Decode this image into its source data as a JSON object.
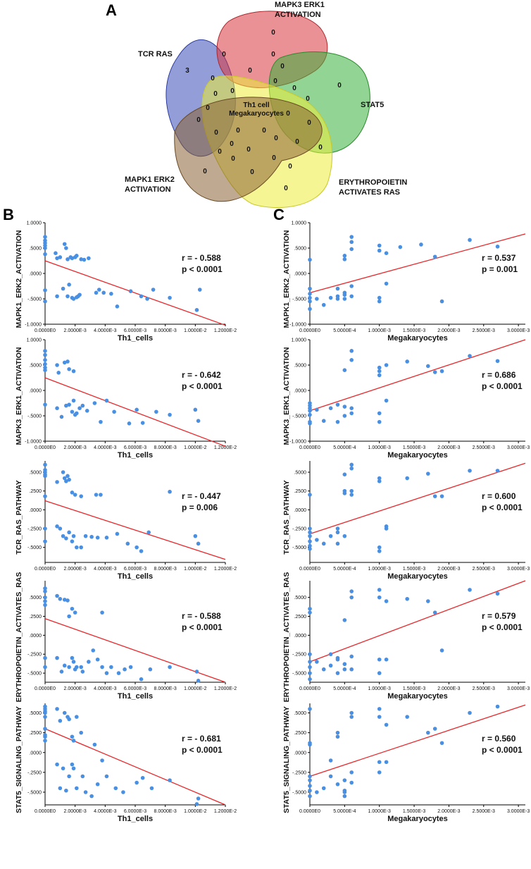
{
  "panels": {
    "A": "A",
    "B": "B",
    "C": "C"
  },
  "venn": {
    "center_label_line1": "Th1 cell",
    "center_label_line2": "Megakaryocytes",
    "sets": [
      {
        "name": "tcr-ras",
        "label_lines": [
          "TCR RAS"
        ],
        "color": "#3b4fb8"
      },
      {
        "name": "mapk3",
        "label_lines": [
          "MAPK3 ERK1",
          "ACTIVATION"
        ],
        "color": "#d8373e"
      },
      {
        "name": "stat5",
        "label_lines": [
          "STAT5"
        ],
        "color": "#39b13a"
      },
      {
        "name": "epo",
        "label_lines": [
          "ERYTHROPOIETIN",
          "ACTIVATES RAS"
        ],
        "color": "#eded3c"
      },
      {
        "name": "mapk1",
        "label_lines": [
          "MAPK1 ERK2",
          "ACTIVATION"
        ],
        "color": "#8a6234"
      }
    ],
    "counts": [
      "3",
      "0",
      "0",
      "0",
      "0",
      "0",
      "0",
      "0",
      "0",
      "0",
      "0",
      "0",
      "0",
      "0",
      "0",
      "0",
      "0",
      "0",
      "0",
      "0",
      "0",
      "0",
      "0",
      "0",
      "0",
      "0",
      "0",
      "0",
      "0",
      "0",
      "0",
      "0"
    ]
  },
  "chart_data": [
    {
      "id": "B1",
      "type": "scatter",
      "ylabel": "MAPK1_ERK2_ACTIVATION",
      "xlabel": "Th1_cells",
      "xlim": [
        0,
        0.012
      ],
      "ylim": [
        -1,
        1
      ],
      "xticks": [
        "0.0000E0",
        "2.0000E-3",
        "4.0000E-3",
        "6.0000E-3",
        "8.0000E-3",
        "1.0000E-2",
        "1.2000E-2"
      ],
      "yticks": [
        "1.0000",
        ".5000",
        ".0000",
        "-.5000",
        "-1.0000"
      ],
      "stat_r": "r = - 0.588",
      "stat_p": "p < 0.0001",
      "fit": [
        0.25,
        -1.02
      ],
      "x": [
        0,
        0,
        0,
        0,
        0,
        0,
        0.0007,
        0.0008,
        0.001,
        0.0013,
        0.0014,
        0.0015,
        0.0017,
        0.0018,
        0.002,
        0.0021,
        0.0024,
        0.0026,
        0.0029,
        0,
        0,
        0.0008,
        0.0012,
        0.0015,
        0.0016,
        0.0018,
        0.0019,
        0.0021,
        0.0022,
        0.0023,
        0.0034,
        0.0036,
        0.0039,
        0.0044,
        0.0048,
        0.0057,
        0.0064,
        0.0068,
        0.0072,
        0.0083,
        0.0101,
        0.0103
      ],
      "y": [
        0.72,
        0.65,
        0.6,
        0.55,
        0.5,
        0.38,
        0.4,
        0.3,
        0.32,
        0.58,
        0.5,
        0.28,
        0.32,
        0.3,
        0.32,
        0.35,
        0.28,
        0.27,
        0.3,
        -0.33,
        -0.55,
        -0.45,
        -0.3,
        -0.45,
        -0.22,
        -0.48,
        -0.5,
        -0.47,
        -0.45,
        -0.42,
        -0.38,
        -0.32,
        -0.38,
        -0.4,
        -0.65,
        -0.35,
        -0.45,
        -0.5,
        -0.32,
        -0.48,
        -0.72,
        -0.32
      ]
    },
    {
      "id": "B2",
      "type": "scatter",
      "ylabel": "MAPK3_ERK1_ACTIVATION",
      "xlabel": "Th1_cells",
      "xlim": [
        0,
        0.012
      ],
      "ylim": [
        -1,
        1
      ],
      "xticks": [
        "0.0000E0",
        "2.0000E-3",
        "4.0000E-3",
        "6.0000E-3",
        "8.0000E-3",
        "1.0000E-2",
        "1.2000E-2"
      ],
      "yticks": [
        "1.0000",
        ".5000",
        ".0000",
        "-.5000",
        "-1.0000"
      ],
      "stat_r": "r = - 0.642",
      "stat_p": "p < 0.0001",
      "fit": [
        0.25,
        -1.1
      ],
      "x": [
        0,
        0,
        0,
        0,
        0,
        0,
        0.0008,
        0.0009,
        0.0013,
        0.0015,
        0.0016,
        0.0019,
        0,
        0.0008,
        0.0011,
        0.0014,
        0.0016,
        0.0018,
        0.0019,
        0.002,
        0.0021,
        0.0023,
        0.0025,
        0.0028,
        0.0033,
        0.0037,
        0.0041,
        0.0046,
        0.0056,
        0.0061,
        0.0065,
        0.0074,
        0.0083,
        0.01,
        0.0102
      ],
      "y": [
        0.78,
        0.7,
        0.6,
        0.52,
        0.45,
        0.4,
        0.5,
        0.35,
        0.55,
        0.57,
        0.42,
        0.38,
        -0.28,
        -0.35,
        -0.52,
        -0.3,
        -0.28,
        -0.42,
        -0.2,
        -0.48,
        -0.45,
        -0.35,
        -0.3,
        -0.4,
        -0.25,
        -0.62,
        -0.2,
        -0.42,
        -0.65,
        -0.38,
        -0.64,
        -0.42,
        -0.48,
        -0.38,
        -0.6
      ]
    },
    {
      "id": "B3",
      "type": "scatter",
      "ylabel": "TCR_RAS_PATHWAY",
      "xlabel": "Th1_cells",
      "xlim": [
        0,
        0.012
      ],
      "ylim": [
        -0.7,
        0.65
      ],
      "xticks": [
        "0.0000E0",
        "2.0000E-3",
        "4.0000E-3",
        "6.0000E-3",
        "8.0000E-3",
        "1.0000E-2",
        "1.2000E-2"
      ],
      "yticks": [
        ".5000",
        ".2500",
        ".0000",
        "-.2500",
        "-.5000"
      ],
      "stat_r": "r = - 0.447",
      "stat_p": "p = 0.006",
      "fit": [
        0.12,
        -0.66
      ],
      "x": [
        0,
        0,
        0,
        0,
        0,
        0,
        0.0008,
        0.0012,
        0.0013,
        0.0014,
        0.0015,
        0.0016,
        0.0018,
        0.002,
        0.0024,
        0.0034,
        0.0037,
        0.0083,
        0,
        0,
        0.0008,
        0.001,
        0.0012,
        0.0014,
        0.0016,
        0.0018,
        0.0019,
        0.0021,
        0.0024,
        0.0027,
        0.0031,
        0.0035,
        0.0041,
        0.0048,
        0.0055,
        0.0061,
        0.0064,
        0.0069,
        0.01,
        0.0102
      ],
      "y": [
        0.6,
        0.53,
        0.5,
        0.47,
        0.45,
        0.18,
        0.37,
        0.5,
        0.42,
        0.38,
        0.45,
        0.4,
        0.23,
        0.2,
        0.18,
        0.2,
        0.2,
        0.24,
        -0.25,
        -0.42,
        -0.22,
        -0.25,
        -0.35,
        -0.38,
        -0.3,
        -0.42,
        -0.35,
        -0.5,
        -0.5,
        -0.35,
        -0.36,
        -0.37,
        -0.37,
        -0.32,
        -0.45,
        -0.5,
        -0.55,
        -0.3,
        -0.35,
        -0.45
      ]
    },
    {
      "id": "B4",
      "type": "scatter",
      "ylabel": "ERYTHROPOIETIN_ACTIVATES_RAS",
      "xlabel": "Th1_cells",
      "xlim": [
        0,
        0.012
      ],
      "ylim": [
        -0.62,
        0.72
      ],
      "xticks": [
        "0.0000E0",
        "2.0000E-3",
        "4.0000E-3",
        "6.0000E-3",
        "8.0000E-3",
        "1.0000E-2",
        "1.2000E-2"
      ],
      "yticks": [
        ".5000",
        ".2500",
        ".0000",
        "-.2500",
        "-.5000"
      ],
      "stat_r": "r = - 0.588",
      "stat_p": "p < 0.0001",
      "fit": [
        0.22,
        -0.62
      ],
      "x": [
        0,
        0,
        0,
        0,
        0,
        0.0008,
        0.001,
        0.0013,
        0.0015,
        0.0016,
        0.0018,
        0.002,
        0.0038,
        0,
        0,
        0.0008,
        0.0011,
        0.0013,
        0.0016,
        0.0018,
        0.0019,
        0.002,
        0.0021,
        0.0024,
        0.0025,
        0.0029,
        0.0032,
        0.0035,
        0.0038,
        0.0041,
        0.0044,
        0.0049,
        0.0053,
        0.0057,
        0.0064,
        0.007,
        0.0083,
        0.0101,
        0.0102
      ],
      "y": [
        0.62,
        0.58,
        0.5,
        0.45,
        0.4,
        0.52,
        0.48,
        0.47,
        0.46,
        0.25,
        0.35,
        0.3,
        0.3,
        -0.3,
        -0.42,
        -0.3,
        -0.48,
        -0.4,
        -0.42,
        -0.3,
        -0.35,
        -0.45,
        -0.42,
        -0.42,
        -0.48,
        -0.35,
        -0.2,
        -0.32,
        -0.42,
        -0.5,
        -0.42,
        -0.5,
        -0.45,
        -0.42,
        -0.58,
        -0.45,
        -0.42,
        -0.48,
        -0.6
      ]
    },
    {
      "id": "B5",
      "type": "scatter",
      "ylabel": "STAT5_SIGNALING_PATHWAY",
      "xlabel": "Th1_cells",
      "xlim": [
        0,
        0.012
      ],
      "ylim": [
        -0.66,
        0.62
      ],
      "xticks": [
        "0.0000E0",
        "2.0000E-3",
        "4.0000E-3",
        "6.0000E-3",
        "8.0000E-3",
        "1.0000E-2",
        "1.2000E-2"
      ],
      "yticks": [
        ".5000",
        ".2500",
        ".0000",
        "-.2500",
        "-.5000"
      ],
      "stat_r": "r = - 0.681",
      "stat_p": "p < 0.0001",
      "fit": [
        0.3,
        -0.66
      ],
      "x": [
        0,
        0,
        0,
        0,
        0,
        0,
        0,
        0,
        0.0008,
        0.001,
        0.0013,
        0.0015,
        0.0016,
        0.0018,
        0.0019,
        0.0021,
        0.0024,
        0.0033,
        0,
        0.0008,
        0.001,
        0.0012,
        0.0014,
        0.0016,
        0.0018,
        0.0019,
        0.0021,
        0.0025,
        0.0027,
        0.0031,
        0.0035,
        0.0038,
        0.0041,
        0.0047,
        0.0052,
        0.0061,
        0.0065,
        0.0071,
        0.0083,
        0.0101,
        0.0102
      ],
      "y": [
        0.58,
        0.55,
        0.52,
        0.5,
        0.45,
        0.3,
        0.2,
        0.15,
        0.55,
        0.4,
        0.5,
        0.45,
        0.42,
        0.2,
        0.15,
        0.45,
        0.25,
        0.1,
        0.22,
        -0.15,
        -0.45,
        -0.2,
        -0.48,
        -0.3,
        -0.15,
        -0.2,
        -0.45,
        -0.3,
        -0.5,
        -0.55,
        -0.4,
        -0.1,
        -0.3,
        -0.45,
        -0.5,
        -0.38,
        -0.32,
        -0.45,
        -0.35,
        -0.65,
        -0.58
      ]
    },
    {
      "id": "C1",
      "type": "scatter",
      "ylabel": "MAPK1_ERK2_ACTIVATION",
      "xlabel": "Megakaryocytes",
      "xlim": [
        0,
        0.0031
      ],
      "ylim": [
        -1,
        1
      ],
      "xticks": [
        "0.0000E0",
        "5.0000E-4",
        "1.0000E-3",
        "1.5000E-3",
        "2.0000E-3",
        "2.5000E-3",
        "3.0000E-3"
      ],
      "yticks": [
        "1.0000",
        ".5000",
        ".0000",
        "-.5000",
        "-1.0000"
      ],
      "stat_r": "r = 0.537",
      "stat_p": "p = 0.001",
      "fit": [
        -0.38,
        0.78
      ],
      "x": [
        0,
        0,
        0,
        0,
        0,
        0,
        0.0001,
        0.0002,
        0.0003,
        0.0004,
        0.0005,
        0.0005,
        0.0005,
        0.0006,
        0.0006,
        0.0006,
        0.0006,
        0.0006,
        0.001,
        0.001,
        0.001,
        0.001,
        0.0011,
        0.0011,
        0.0013,
        0.0016,
        0.0018,
        0.0019,
        0.0023,
        0.0027,
        0.0004,
        0.0005,
        0.0005,
        0.0004
      ],
      "y": [
        0.27,
        -0.3,
        -0.4,
        -0.48,
        -0.55,
        -0.7,
        -0.5,
        -0.62,
        -0.48,
        -0.45,
        -0.38,
        0.35,
        0.28,
        0.72,
        0.62,
        0.48,
        -0.25,
        -0.45,
        0.55,
        0.45,
        -0.48,
        -0.55,
        0.4,
        -0.2,
        0.52,
        0.57,
        0.33,
        -0.55,
        0.66,
        0.53,
        -0.5,
        -0.42,
        -0.5,
        -0.3
      ]
    },
    {
      "id": "C2",
      "type": "scatter",
      "ylabel": "MAPK3_ERK1_ACTIVATION",
      "xlabel": "Megakaryocytes",
      "xlim": [
        0,
        0.0031
      ],
      "ylim": [
        -1,
        1
      ],
      "xticks": [
        "0.0000E0",
        "5.0000E-4",
        "1.0000E-3",
        "1.5000E-3",
        "2.0000E-3",
        "2.5000E-3",
        "3.0000E-3"
      ],
      "yticks": [
        "1.0000",
        ".5000",
        ".0000",
        "-.5000",
        "-1.0000"
      ],
      "stat_r": "r = 0.686",
      "stat_p": "p < 0.0001",
      "fit": [
        -0.4,
        1.0
      ],
      "x": [
        0,
        0,
        0,
        0,
        0,
        0,
        0,
        0.0001,
        0.0002,
        0.0003,
        0.0004,
        0.0004,
        0.0005,
        0.0005,
        0.0005,
        0.0006,
        0.0006,
        0.0006,
        0.0006,
        0.001,
        0.001,
        0.001,
        0.001,
        0.001,
        0.0011,
        0.0011,
        0.0014,
        0.0017,
        0.0018,
        0.0019,
        0.0023,
        0.0027
      ],
      "y": [
        -0.25,
        -0.3,
        -0.35,
        -0.4,
        -0.48,
        -0.62,
        -0.65,
        -0.38,
        -0.6,
        -0.35,
        -0.28,
        -0.62,
        0.4,
        -0.32,
        -0.5,
        0.78,
        0.6,
        -0.35,
        -0.45,
        0.45,
        0.38,
        0.3,
        -0.45,
        -0.62,
        0.5,
        -0.2,
        0.57,
        0.48,
        0.36,
        0.38,
        0.68,
        0.58
      ]
    },
    {
      "id": "C3",
      "type": "scatter",
      "ylabel": "TCR_RAS_PATHWAY",
      "xlabel": "Megakaryocytes",
      "xlim": [
        0,
        0.0031
      ],
      "ylim": [
        -0.7,
        0.65
      ],
      "xticks": [
        "0.0000E0",
        "5.0000E-4",
        "1.0000E-3",
        "1.5000E-3",
        "2.0000E-3",
        "2.5000E-3",
        "3.0000E-3"
      ],
      "yticks": [
        ".5000",
        ".2500",
        ".0000",
        "-.2500",
        "-.5000"
      ],
      "stat_r": "r = 0.600",
      "stat_p": "p < 0.0001",
      "fit": [
        -0.32,
        0.62
      ],
      "x": [
        0,
        0,
        0,
        0,
        0,
        0,
        0,
        0.0001,
        0.0002,
        0.0003,
        0.0004,
        0.0004,
        0.0005,
        0.0005,
        0.0005,
        0.0006,
        0.0006,
        0.0006,
        0.0006,
        0.001,
        0.001,
        0.001,
        0.001,
        0.0011,
        0.0011,
        0.0014,
        0.0017,
        0.0018,
        0.0019,
        0.0023,
        0.0027,
        0.0004,
        0.0005
      ],
      "y": [
        0.2,
        -0.25,
        -0.3,
        -0.35,
        -0.42,
        -0.48,
        -0.52,
        -0.4,
        -0.45,
        -0.35,
        -0.25,
        -0.3,
        0.47,
        0.22,
        0.25,
        0.6,
        0.55,
        0.2,
        0.25,
        0.42,
        0.38,
        -0.5,
        -0.55,
        -0.25,
        -0.22,
        0.42,
        0.48,
        0.18,
        0.18,
        0.52,
        0.52,
        -0.45,
        -0.35
      ]
    },
    {
      "id": "C4",
      "type": "scatter",
      "ylabel": "ERYTHROPOIETIN_ACTIVATES_RAS",
      "xlabel": "Megakaryocytes",
      "xlim": [
        0,
        0.0031
      ],
      "ylim": [
        -0.62,
        0.72
      ],
      "xticks": [
        "0.0000E0",
        "5.0000E-4",
        "1.0000E-3",
        "1.5000E-3",
        "2.0000E-3",
        "2.5000E-3",
        "3.0000E-3"
      ],
      "yticks": [
        ".5000",
        ".2500",
        ".0000",
        "-.2500",
        "-.5000"
      ],
      "stat_r": "r = 0.579",
      "stat_p": "p < 0.0001",
      "fit": [
        -0.35,
        0.72
      ],
      "x": [
        0,
        0,
        0,
        0,
        0,
        0,
        0,
        0.0001,
        0.0002,
        0.0003,
        0.0004,
        0.0004,
        0.0005,
        0.0005,
        0.0005,
        0.0006,
        0.0006,
        0.0006,
        0.0006,
        0.001,
        0.001,
        0.001,
        0.001,
        0.0011,
        0.0011,
        0.0014,
        0.0017,
        0.0018,
        0.0019,
        0.0023,
        0.0027,
        0.0003,
        0.0004
      ],
      "y": [
        0.35,
        0.3,
        -0.25,
        -0.35,
        -0.42,
        -0.5,
        -0.58,
        -0.35,
        -0.45,
        -0.25,
        -0.32,
        -0.5,
        0.2,
        -0.38,
        -0.45,
        0.58,
        0.5,
        -0.28,
        -0.45,
        0.6,
        0.5,
        -0.32,
        -0.5,
        0.45,
        -0.32,
        0.48,
        0.45,
        0.3,
        -0.2,
        0.6,
        0.55,
        -0.4,
        -0.3
      ]
    },
    {
      "id": "C5",
      "type": "scatter",
      "ylabel": "STAT5_SIGNALING_PATHWAY",
      "xlabel": "Megakaryocytes",
      "xlim": [
        0,
        0.0031
      ],
      "ylim": [
        -0.66,
        0.62
      ],
      "xticks": [
        "0.0000E0",
        "5.0000E-4",
        "1.0000E-3",
        "1.5000E-3",
        "2.0000E-3",
        "2.5000E-3",
        "3.0000E-3"
      ],
      "yticks": [
        ".5000",
        ".2500",
        ".0000",
        "-.2500",
        "-.5000"
      ],
      "stat_r": "r = 0.560",
      "stat_p": "p < 0.0001",
      "fit": [
        -0.3,
        0.6
      ],
      "x": [
        0,
        0,
        0,
        0,
        0,
        0,
        0,
        0,
        0.0001,
        0.0002,
        0.0003,
        0.0004,
        0.0004,
        0.0004,
        0.0005,
        0.0005,
        0.0005,
        0.0005,
        0.0006,
        0.0006,
        0.0006,
        0.0006,
        0.001,
        0.001,
        0.001,
        0.001,
        0.0011,
        0.0011,
        0.0014,
        0.0017,
        0.0018,
        0.0019,
        0.0023,
        0.0027,
        0.0003
      ],
      "y": [
        0.55,
        0.12,
        0.1,
        -0.3,
        -0.35,
        -0.42,
        -0.48,
        -0.55,
        -0.5,
        -0.45,
        -0.3,
        0.25,
        0.2,
        -0.4,
        -0.55,
        -0.48,
        -0.5,
        -0.35,
        0.5,
        0.45,
        -0.25,
        -0.38,
        0.55,
        0.45,
        -0.12,
        -0.25,
        0.35,
        -0.12,
        0.45,
        0.25,
        0.3,
        0.12,
        0.5,
        0.58,
        -0.1
      ]
    }
  ]
}
